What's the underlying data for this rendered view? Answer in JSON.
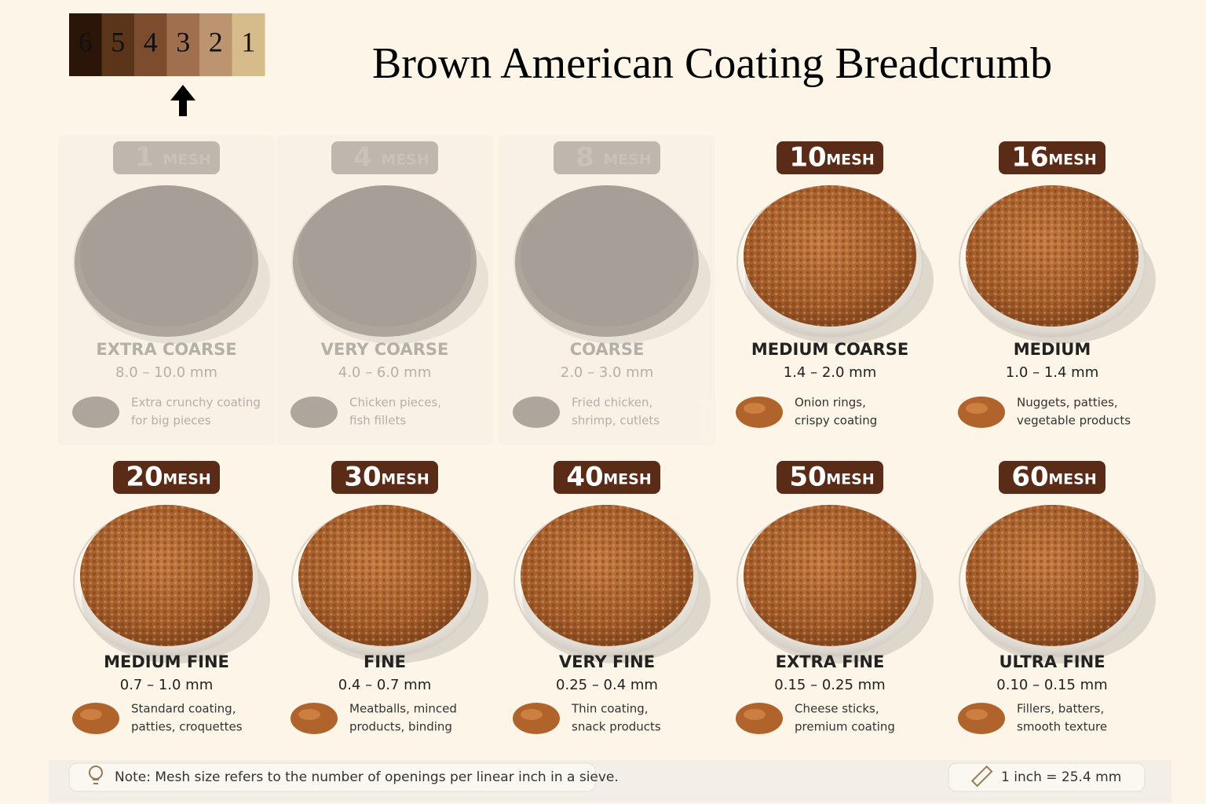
{
  "header": {
    "title": "Brown American Coating Breadcrumb",
    "swatches": [
      {
        "label": "6",
        "color": "#2b1508"
      },
      {
        "label": "5",
        "color": "#5b3519"
      },
      {
        "label": "4",
        "color": "#7d4c2e"
      },
      {
        "label": "3",
        "color": "#a0704e"
      },
      {
        "label": "2",
        "color": "#bd9470"
      },
      {
        "label": "1",
        "color": "#d6bb8b"
      }
    ]
  },
  "cards": [
    {
      "mesh": "1",
      "unit": "MESH",
      "name": "EXTRA COARSE",
      "range": "8.0 – 10.0 mm",
      "description": [
        "Extra crunchy coating",
        "for big pieces"
      ],
      "faded": true
    },
    {
      "mesh": "4",
      "unit": "MESH",
      "name": "VERY COARSE",
      "range": "4.0 – 6.0 mm",
      "description": [
        "Chicken pieces,",
        "fish fillets"
      ],
      "faded": true
    },
    {
      "mesh": "8",
      "unit": "MESH",
      "name": "COARSE",
      "range": "2.0 – 3.0 mm",
      "description": [
        "Fried chicken,",
        "shrimp, cutlets"
      ],
      "faded": true
    },
    {
      "mesh": "10",
      "unit": "MESH",
      "name": "MEDIUM COARSE",
      "range": "1.4 – 2.0 mm",
      "description": [
        "Onion rings,",
        "crispy coating"
      ],
      "faded": false
    },
    {
      "mesh": "16",
      "unit": "MESH",
      "name": "MEDIUM",
      "range": "1.0 – 1.4 mm",
      "description": [
        "Nuggets, patties,",
        "vegetable products"
      ],
      "faded": false
    },
    {
      "mesh": "20",
      "unit": "MESH",
      "name": "MEDIUM FINE",
      "range": "0.7 – 1.0 mm",
      "description": [
        "Standard coating,",
        "patties, croquettes"
      ],
      "faded": false
    },
    {
      "mesh": "30",
      "unit": "MESH",
      "name": "FINE",
      "range": "0.4 – 0.7 mm",
      "description": [
        "Meatballs, minced",
        "products, binding"
      ],
      "faded": false
    },
    {
      "mesh": "40",
      "unit": "MESH",
      "name": "VERY FINE",
      "range": "0.25 – 0.4 mm",
      "description": [
        "Thin coating,",
        "snack products"
      ],
      "faded": false
    },
    {
      "mesh": "50",
      "unit": "MESH",
      "name": "EXTRA FINE",
      "range": "0.15 – 0.25 mm",
      "description": [
        "Cheese sticks,",
        "premium coating"
      ],
      "faded": false
    },
    {
      "mesh": "60",
      "unit": "MESH",
      "name": "ULTRA FINE",
      "range": "0.10 – 0.15 mm",
      "description": [
        "Fillers, batters,",
        "smooth texture"
      ],
      "faded": false
    }
  ],
  "footer": {
    "note": "Note: Mesh size refers to the number of openings per linear inch in a sieve.",
    "conversion": "1 inch = 25.4 mm"
  }
}
